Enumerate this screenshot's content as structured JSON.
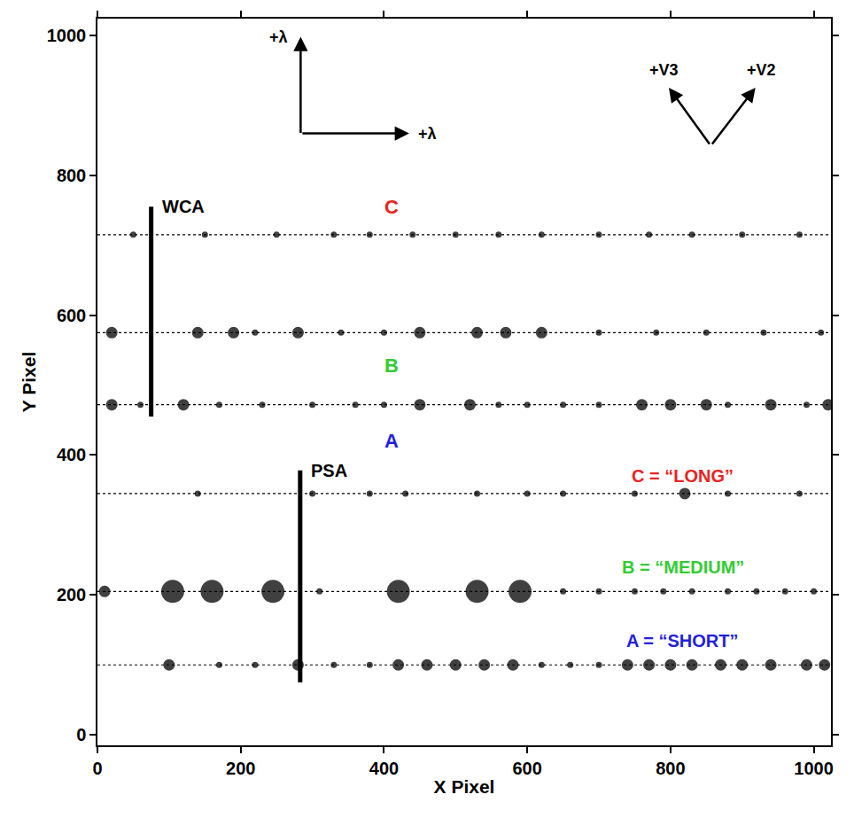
{
  "chart_data": {
    "type": "scatter",
    "xlabel": "X Pixel",
    "ylabel": "Y Pixel",
    "xlim": [
      0,
      1024
    ],
    "ylim": [
      -15,
      1024
    ],
    "xticks": [
      0,
      200,
      400,
      600,
      800,
      1000
    ],
    "yticks": [
      0,
      200,
      400,
      600,
      800,
      1000
    ],
    "grid": false,
    "stripes": [
      {
        "aperture": "PSA",
        "stripe": "A",
        "y": 100,
        "color": "#000000",
        "x": [
          100,
          170,
          220,
          280,
          330,
          380,
          420,
          460,
          500,
          540,
          580,
          620,
          660,
          700,
          740,
          770,
          800,
          830,
          870,
          900,
          940,
          990,
          1015
        ],
        "intensity": [
          2,
          1,
          1,
          2,
          1,
          1,
          2,
          2,
          2,
          2,
          2,
          1,
          1,
          1,
          2,
          2,
          2,
          2,
          2,
          2,
          2,
          2,
          2
        ]
      },
      {
        "aperture": "PSA",
        "stripe": "B",
        "y": 205,
        "color": "#000000",
        "x": [
          10,
          105,
          160,
          245,
          310,
          420,
          530,
          590,
          650,
          700,
          750,
          790,
          830,
          880,
          920,
          960,
          1000
        ],
        "intensity": [
          2,
          3,
          3,
          3,
          1,
          3,
          3,
          3,
          1,
          1,
          1,
          1,
          1,
          1,
          1,
          1,
          1
        ]
      },
      {
        "aperture": "PSA",
        "stripe": "C",
        "y": 345,
        "color": "#000000",
        "x": [
          140,
          300,
          380,
          430,
          530,
          600,
          650,
          750,
          820,
          880,
          980
        ],
        "intensity": [
          1,
          1,
          1,
          1,
          1,
          1,
          1,
          1,
          2,
          1,
          1
        ]
      },
      {
        "aperture": "WCA",
        "stripe": "A",
        "y": 472,
        "color": "#000000",
        "x": [
          20,
          60,
          120,
          170,
          230,
          300,
          360,
          400,
          450,
          520,
          560,
          600,
          650,
          700,
          760,
          800,
          850,
          880,
          940,
          990,
          1020
        ],
        "intensity": [
          2,
          1,
          2,
          1,
          1,
          1,
          1,
          1,
          2,
          2,
          1,
          1,
          1,
          1,
          2,
          2,
          2,
          1,
          2,
          1,
          2
        ]
      },
      {
        "aperture": "WCA",
        "stripe": "B",
        "y": 575,
        "color": "#000000",
        "x": [
          20,
          140,
          190,
          220,
          280,
          340,
          400,
          450,
          530,
          570,
          620,
          700,
          780,
          850,
          930,
          1010
        ],
        "intensity": [
          2,
          2,
          2,
          1,
          2,
          1,
          1,
          2,
          2,
          2,
          2,
          1,
          1,
          1,
          1,
          1
        ]
      },
      {
        "aperture": "WCA",
        "stripe": "C",
        "y": 715,
        "color": "#000000",
        "x": [
          50,
          150,
          250,
          330,
          380,
          440,
          500,
          560,
          620,
          700,
          770,
          830,
          900,
          980
        ],
        "intensity": [
          1,
          1,
          1,
          1,
          1,
          1,
          1,
          1,
          1,
          1,
          1,
          1,
          1,
          1
        ]
      }
    ],
    "apertures": [
      {
        "label": "WCA",
        "x": 75,
        "y": [
          455,
          755
        ]
      },
      {
        "label": "PSA",
        "x": 283,
        "y": [
          75,
          378
        ]
      }
    ],
    "stripe_labels": [
      {
        "text": "C",
        "color": "#e8231f",
        "x": 410,
        "y": 755
      },
      {
        "text": "B",
        "color": "#33cc33",
        "x": 410,
        "y": 528
      },
      {
        "text": "A",
        "color": "#1f1fe0",
        "x": 410,
        "y": 420
      }
    ],
    "segment_key": [
      {
        "text": "C = “LONG”",
        "color": "#e8231f",
        "x": 817,
        "y": 370
      },
      {
        "text": "B = “MEDIUM”",
        "color": "#33cc33",
        "x": 817,
        "y": 240
      },
      {
        "text": "A = “SHORT”",
        "color": "#1f1fe0",
        "x": 817,
        "y": 135
      }
    ],
    "direction_labels": {
      "wavelength": "+λ",
      "v2": "+V2",
      "v3": "+V3"
    }
  }
}
